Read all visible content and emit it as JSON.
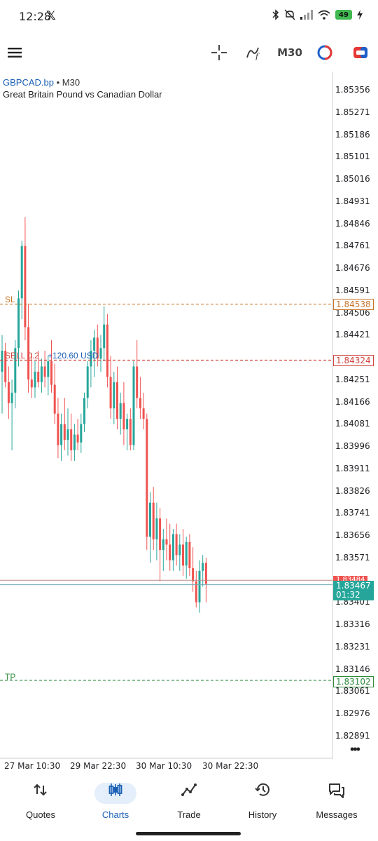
{
  "status_bar": {
    "time": "12:28",
    "x_logo": "𝕏",
    "battery": "49"
  },
  "toolbar": {
    "menu_icon": "hamburger-menu-icon",
    "crosshair_icon": "crosshair-icon",
    "indicators_icon": "indicators-icon",
    "timeframe": "M30",
    "objects_icon": "objects-icon",
    "trade_icon": "one-click-trade-icon"
  },
  "chart": {
    "symbol": "GBPCAD.bp",
    "separator": "•",
    "timeframe": "M30",
    "description": "Great Britain Pound vs Canadian Dollar",
    "price_axis": [
      "1.85356",
      "1.85271",
      "1.85186",
      "1.85101",
      "1.85016",
      "1.84931",
      "1.84846",
      "1.84761",
      "1.84676",
      "1.84591",
      "1.84506",
      "1.84421",
      "1.84336",
      "1.84251",
      "1.84166",
      "1.84081",
      "1.83996",
      "1.83911",
      "1.83826",
      "1.83741",
      "1.83656",
      "1.83571",
      "1.83486",
      "1.83401",
      "1.83316",
      "1.83231",
      "1.83146",
      "1.83061",
      "1.82976",
      "1.82891"
    ],
    "time_axis": [
      "27 Mar 10:30",
      "29 Mar 22:30",
      "30 Mar 10:30",
      "30 Mar 22:30"
    ],
    "sl": {
      "label": "SL",
      "price": "1.84538",
      "color": "#c8742a"
    },
    "entry": {
      "label": "SELL 0.2",
      "profit": "+120.60 USD",
      "price": "1.84324",
      "color": "#d0453f"
    },
    "tp": {
      "label": "TP",
      "price": "1.83102",
      "color": "#2e8b3a"
    },
    "bid": {
      "price": "1.83484"
    },
    "ask": {
      "price": "1.83467",
      "countdown": "01:32",
      "color": "#26a69a"
    },
    "colors": {
      "bull": "#26a69a",
      "bear": "#ef5350"
    },
    "candles": [
      {
        "o": 1.8428,
        "h": 1.8442,
        "l": 1.8412,
        "c": 1.8436
      },
      {
        "o": 1.8436,
        "h": 1.8439,
        "l": 1.8422,
        "c": 1.8424
      },
      {
        "o": 1.8424,
        "h": 1.843,
        "l": 1.841,
        "c": 1.8416
      },
      {
        "o": 1.8416,
        "h": 1.8425,
        "l": 1.8398,
        "c": 1.842
      },
      {
        "o": 1.842,
        "h": 1.844,
        "l": 1.8414,
        "c": 1.8437
      },
      {
        "o": 1.8437,
        "h": 1.8459,
        "l": 1.843,
        "c": 1.8456
      },
      {
        "o": 1.8456,
        "h": 1.8478,
        "l": 1.8448,
        "c": 1.8476
      },
      {
        "o": 1.8476,
        "h": 1.8487,
        "l": 1.844,
        "c": 1.8445
      },
      {
        "o": 1.8445,
        "h": 1.8454,
        "l": 1.842,
        "c": 1.8425
      },
      {
        "o": 1.8425,
        "h": 1.8435,
        "l": 1.8418,
        "c": 1.8422
      },
      {
        "o": 1.8422,
        "h": 1.8432,
        "l": 1.8418,
        "c": 1.8428
      },
      {
        "o": 1.8428,
        "h": 1.8436,
        "l": 1.8422,
        "c": 1.8424
      },
      {
        "o": 1.8424,
        "h": 1.8433,
        "l": 1.842,
        "c": 1.843
      },
      {
        "o": 1.843,
        "h": 1.8436,
        "l": 1.8422,
        "c": 1.8426
      },
      {
        "o": 1.8426,
        "h": 1.8434,
        "l": 1.8419,
        "c": 1.8432
      },
      {
        "o": 1.8432,
        "h": 1.844,
        "l": 1.842,
        "c": 1.8423
      },
      {
        "o": 1.8423,
        "h": 1.8431,
        "l": 1.8408,
        "c": 1.8412
      },
      {
        "o": 1.8412,
        "h": 1.8418,
        "l": 1.8395,
        "c": 1.84
      },
      {
        "o": 1.84,
        "h": 1.8412,
        "l": 1.8394,
        "c": 1.8408
      },
      {
        "o": 1.8408,
        "h": 1.8418,
        "l": 1.8398,
        "c": 1.8402
      },
      {
        "o": 1.8402,
        "h": 1.8414,
        "l": 1.8396,
        "c": 1.8406
      },
      {
        "o": 1.8406,
        "h": 1.8412,
        "l": 1.8394,
        "c": 1.8398
      },
      {
        "o": 1.8398,
        "h": 1.8408,
        "l": 1.8394,
        "c": 1.8404
      },
      {
        "o": 1.8404,
        "h": 1.841,
        "l": 1.8398,
        "c": 1.8401
      },
      {
        "o": 1.8401,
        "h": 1.8412,
        "l": 1.8397,
        "c": 1.8408
      },
      {
        "o": 1.8408,
        "h": 1.842,
        "l": 1.8405,
        "c": 1.8418
      },
      {
        "o": 1.8418,
        "h": 1.8432,
        "l": 1.8414,
        "c": 1.843
      },
      {
        "o": 1.843,
        "h": 1.844,
        "l": 1.8422,
        "c": 1.8436
      },
      {
        "o": 1.8436,
        "h": 1.8444,
        "l": 1.8426,
        "c": 1.8441
      },
      {
        "o": 1.8441,
        "h": 1.8446,
        "l": 1.843,
        "c": 1.8433
      },
      {
        "o": 1.8433,
        "h": 1.8442,
        "l": 1.8428,
        "c": 1.8437
      },
      {
        "o": 1.8437,
        "h": 1.8453,
        "l": 1.8432,
        "c": 1.8446
      },
      {
        "o": 1.8446,
        "h": 1.845,
        "l": 1.8422,
        "c": 1.8426
      },
      {
        "o": 1.8426,
        "h": 1.8434,
        "l": 1.841,
        "c": 1.8414
      },
      {
        "o": 1.8414,
        "h": 1.8428,
        "l": 1.8408,
        "c": 1.8424
      },
      {
        "o": 1.8424,
        "h": 1.843,
        "l": 1.8406,
        "c": 1.841
      },
      {
        "o": 1.841,
        "h": 1.842,
        "l": 1.8404,
        "c": 1.8416
      },
      {
        "o": 1.8416,
        "h": 1.8424,
        "l": 1.84,
        "c": 1.8406
      },
      {
        "o": 1.8406,
        "h": 1.8412,
        "l": 1.8398,
        "c": 1.841
      },
      {
        "o": 1.841,
        "h": 1.8414,
        "l": 1.8398,
        "c": 1.84
      },
      {
        "o": 1.84,
        "h": 1.8432,
        "l": 1.8398,
        "c": 1.843
      },
      {
        "o": 1.843,
        "h": 1.844,
        "l": 1.8414,
        "c": 1.8418
      },
      {
        "o": 1.8418,
        "h": 1.8426,
        "l": 1.841,
        "c": 1.8414
      },
      {
        "o": 1.8414,
        "h": 1.842,
        "l": 1.8406,
        "c": 1.841
      },
      {
        "o": 1.841,
        "h": 1.8412,
        "l": 1.836,
        "c": 1.8365
      },
      {
        "o": 1.8365,
        "h": 1.8382,
        "l": 1.8355,
        "c": 1.8378
      },
      {
        "o": 1.8378,
        "h": 1.8384,
        "l": 1.836,
        "c": 1.8364
      },
      {
        "o": 1.8364,
        "h": 1.8378,
        "l": 1.8356,
        "c": 1.8372
      },
      {
        "o": 1.8372,
        "h": 1.8376,
        "l": 1.8348,
        "c": 1.836
      },
      {
        "o": 1.836,
        "h": 1.8368,
        "l": 1.8352,
        "c": 1.8364
      },
      {
        "o": 1.8364,
        "h": 1.8372,
        "l": 1.8356,
        "c": 1.8362
      },
      {
        "o": 1.8362,
        "h": 1.837,
        "l": 1.8352,
        "c": 1.8356
      },
      {
        "o": 1.8356,
        "h": 1.8368,
        "l": 1.8352,
        "c": 1.8366
      },
      {
        "o": 1.8366,
        "h": 1.837,
        "l": 1.8354,
        "c": 1.8358
      },
      {
        "o": 1.8358,
        "h": 1.8366,
        "l": 1.8352,
        "c": 1.8362
      },
      {
        "o": 1.8362,
        "h": 1.8368,
        "l": 1.835,
        "c": 1.8354
      },
      {
        "o": 1.8354,
        "h": 1.8365,
        "l": 1.8349,
        "c": 1.8363
      },
      {
        "o": 1.8363,
        "h": 1.8366,
        "l": 1.835,
        "c": 1.8353
      },
      {
        "o": 1.8353,
        "h": 1.8361,
        "l": 1.8344,
        "c": 1.8348
      },
      {
        "o": 1.8348,
        "h": 1.8352,
        "l": 1.8338,
        "c": 1.834
      },
      {
        "o": 1.834,
        "h": 1.8356,
        "l": 1.8336,
        "c": 1.8352
      },
      {
        "o": 1.8352,
        "h": 1.8358,
        "l": 1.8346,
        "c": 1.8355
      },
      {
        "o": 1.8355,
        "h": 1.8357,
        "l": 1.834,
        "c": 1.8347
      }
    ]
  },
  "bottom_nav": [
    {
      "label": "Quotes",
      "icon": "quotes-icon",
      "active": false
    },
    {
      "label": "Charts",
      "icon": "charts-icon",
      "active": true
    },
    {
      "label": "Trade",
      "icon": "trade-icon",
      "active": false
    },
    {
      "label": "History",
      "icon": "history-icon",
      "active": false
    },
    {
      "label": "Messages",
      "icon": "messages-icon",
      "active": false
    }
  ]
}
